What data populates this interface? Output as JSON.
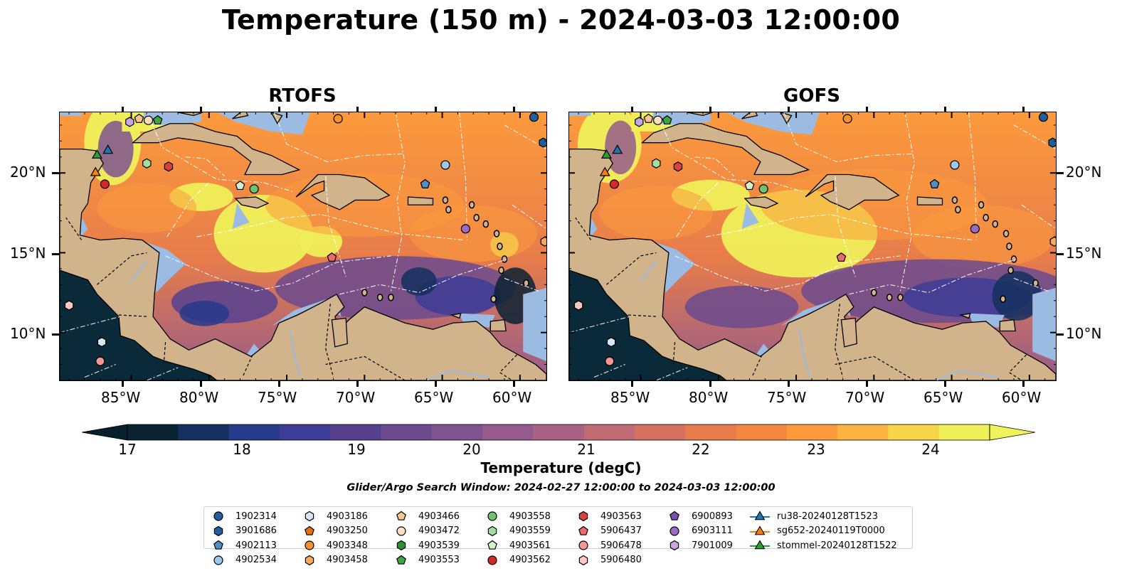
{
  "title": "Temperature (150 m) - 2024-03-03 12:00:00",
  "panels": [
    {
      "title": "RTOFS"
    },
    {
      "title": "GOFS"
    }
  ],
  "axes": {
    "lat_labels": [
      "20°N",
      "15°N",
      "10°N"
    ],
    "lon_labels": [
      "85°W",
      "80°W",
      "75°W",
      "70°W",
      "65°W",
      "60°W"
    ],
    "extent": {
      "lon_min": -89.6,
      "lon_max": -58.3,
      "lat_min": 7.0,
      "lat_max": 23.8
    }
  },
  "colorbar": {
    "label": "Temperature (degC)",
    "ticks": [
      "17",
      "18",
      "19",
      "20",
      "21",
      "22",
      "23",
      "24"
    ],
    "min": 16.75,
    "max": 24.25,
    "step": 0.5,
    "colors": [
      "#0b2233",
      "#15305f",
      "#273a8c",
      "#3d3c96",
      "#57418f",
      "#6b4a8e",
      "#7f5290",
      "#955b8c",
      "#aa6283",
      "#c06a73",
      "#d5725f",
      "#e77c4b",
      "#f5873e",
      "#fc9a3c",
      "#fbb43f",
      "#f4d648",
      "#efef5a"
    ],
    "under_color": "#08202e",
    "over_color": "#eef25d"
  },
  "search_window": "Glider/Argo Search Window: 2024-02-27 12:00:00 to 2024-03-03 12:00:00",
  "legend": {
    "columns": [
      [
        {
          "label": "1902314",
          "marker": "circle",
          "color": "#1f5f9e"
        },
        {
          "label": "3901686",
          "marker": "hexagon",
          "color": "#1f5f9e"
        },
        {
          "label": "4902113",
          "marker": "pentagon",
          "color": "#4f8fc9"
        },
        {
          "label": "4902534",
          "marker": "circle",
          "color": "#9cc8ec"
        }
      ],
      [
        {
          "label": "4903186",
          "marker": "hexagon",
          "color": "#d7e7f6"
        },
        {
          "label": "4903250",
          "marker": "pentagon",
          "color": "#e8700f"
        },
        {
          "label": "4903348",
          "marker": "circle",
          "color": "#f5922f"
        },
        {
          "label": "4903458",
          "marker": "hexagon",
          "color": "#f7a85c"
        }
      ],
      [
        {
          "label": "4903466",
          "marker": "pentagon",
          "color": "#f9c48d"
        },
        {
          "label": "4903472",
          "marker": "circle",
          "color": "#fde0c0"
        },
        {
          "label": "4903539",
          "marker": "hexagon",
          "color": "#27912f"
        },
        {
          "label": "4903553",
          "marker": "pentagon",
          "color": "#3ca643"
        }
      ],
      [
        {
          "label": "4903558",
          "marker": "circle",
          "color": "#6cc46d"
        },
        {
          "label": "4903559",
          "marker": "hexagon",
          "color": "#a3e09c"
        },
        {
          "label": "4903561",
          "marker": "pentagon",
          "color": "#d3f2cc"
        },
        {
          "label": "4903562",
          "marker": "circle",
          "color": "#d62728"
        }
      ],
      [
        {
          "label": "4903563",
          "marker": "hexagon",
          "color": "#d9403e"
        },
        {
          "label": "5906437",
          "marker": "pentagon",
          "color": "#ec6a6a"
        },
        {
          "label": "5906478",
          "marker": "circle",
          "color": "#f29696"
        },
        {
          "label": "5906480",
          "marker": "hexagon",
          "color": "#fbc7c3"
        }
      ],
      [
        {
          "label": "6900893",
          "marker": "pentagon",
          "color": "#7a4fae"
        },
        {
          "label": "6903111",
          "marker": "circle",
          "color": "#9a6ac5"
        },
        {
          "label": "7901009",
          "marker": "hexagon",
          "color": "#c7a6e0"
        }
      ],
      [
        {
          "label": "ru38-20240128T1523",
          "marker": "triangle-line",
          "color": "#1f77b4"
        },
        {
          "label": "sg652-20240119T0000",
          "marker": "triangle-line",
          "color": "#ff7f0e"
        },
        {
          "label": "stommel-20240128T1522",
          "marker": "triangle-line",
          "color": "#2ca02c"
        }
      ]
    ]
  },
  "platforms": [
    {
      "lon": -59.1,
      "lat": 23.5,
      "marker": "circle",
      "color": "#1f5f9e"
    },
    {
      "lon": -58.5,
      "lat": 21.9,
      "marker": "hexagon",
      "color": "#1f5f9e"
    },
    {
      "lon": -66.1,
      "lat": 19.3,
      "marker": "pentagon",
      "color": "#4f8fc9"
    },
    {
      "lon": -64.8,
      "lat": 20.5,
      "marker": "circle",
      "color": "#9cc8ec"
    },
    {
      "lon": -86.9,
      "lat": 9.4,
      "marker": "hexagon",
      "color": "#d7e7f6"
    },
    {
      "lon": -72.1,
      "lat": 14.7,
      "marker": "pentagon",
      "color": "#ec6a6a"
    },
    {
      "lon": -71.7,
      "lat": 23.4,
      "marker": "circle",
      "color": "#f5922f"
    },
    {
      "lon": -58.4,
      "lat": 15.7,
      "marker": "hexagon",
      "color": "#f7a85c"
    },
    {
      "lon": -84.5,
      "lat": 23.4,
      "marker": "pentagon",
      "color": "#f9c48d"
    },
    {
      "lon": -83.9,
      "lat": 23.3,
      "marker": "circle",
      "color": "#fde0c0"
    },
    {
      "lon": -83.3,
      "lat": 23.3,
      "marker": "pentagon",
      "color": "#3ca643"
    },
    {
      "lon": -77.1,
      "lat": 19.0,
      "marker": "circle",
      "color": "#6cc46d"
    },
    {
      "lon": -84.0,
      "lat": 20.6,
      "marker": "hexagon",
      "color": "#a3e09c"
    },
    {
      "lon": -78.0,
      "lat": 19.2,
      "marker": "pentagon",
      "color": "#d3f2cc"
    },
    {
      "lon": -86.7,
      "lat": 19.3,
      "marker": "circle",
      "color": "#d62728"
    },
    {
      "lon": -82.6,
      "lat": 20.4,
      "marker": "hexagon",
      "color": "#d9403e"
    },
    {
      "lon": -87.0,
      "lat": 8.2,
      "marker": "circle",
      "color": "#f29696"
    },
    {
      "lon": -89.0,
      "lat": 11.7,
      "marker": "hexagon",
      "color": "#fbc7c3"
    },
    {
      "lon": -85.1,
      "lat": 23.2,
      "marker": "hexagon",
      "color": "#c7a6e0"
    },
    {
      "lon": -63.5,
      "lat": 16.5,
      "marker": "circle",
      "color": "#9a6ac5"
    },
    {
      "lon": -86.5,
      "lat": 21.4,
      "marker": "triangle",
      "color": "#1f77b4"
    },
    {
      "lon": -87.3,
      "lat": 20.0,
      "marker": "triangle",
      "color": "#ff7f0e"
    },
    {
      "lon": -87.2,
      "lat": 21.1,
      "marker": "triangle",
      "color": "#2ca02c"
    }
  ],
  "map_colors": {
    "land": "#d2b48c",
    "shelf_water": "#9bbbe3",
    "coast": "#000000"
  }
}
